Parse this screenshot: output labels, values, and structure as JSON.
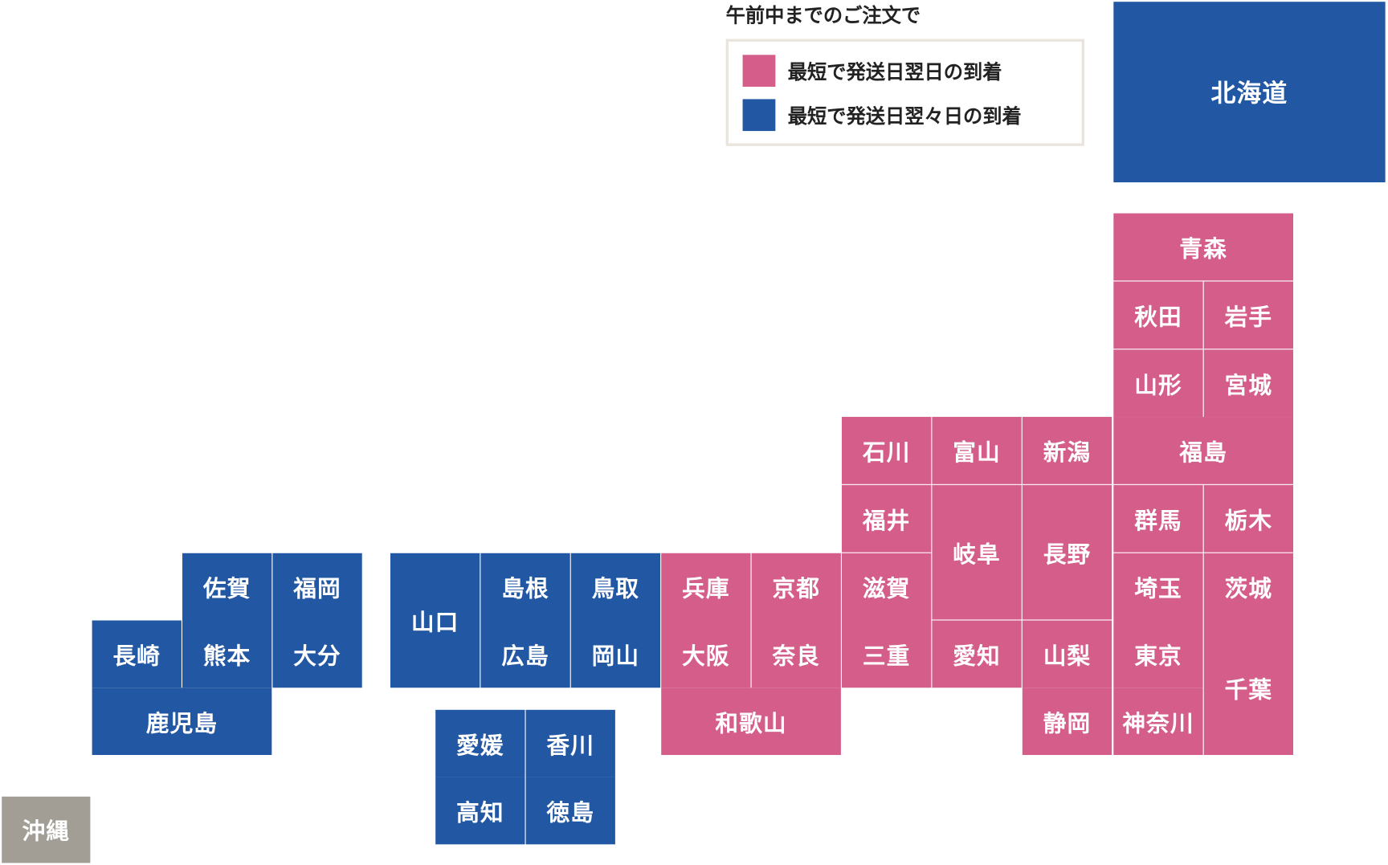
{
  "colors": {
    "next_day": "#d45d8a",
    "two_days": "#2258a3",
    "other": "#a29e96"
  },
  "legend": {
    "title": "午前中までのご注文で",
    "items": [
      {
        "label": "最短で発送日翌日の到着",
        "category": "next_day"
      },
      {
        "label": "最短で発送日翌々日の到着",
        "category": "two_days"
      }
    ]
  },
  "prefectures": [
    {
      "name": "北海道",
      "category": "two_days"
    },
    {
      "name": "青森",
      "category": "next_day"
    },
    {
      "name": "秋田",
      "category": "next_day"
    },
    {
      "name": "岩手",
      "category": "next_day"
    },
    {
      "name": "山形",
      "category": "next_day"
    },
    {
      "name": "宮城",
      "category": "next_day"
    },
    {
      "name": "石川",
      "category": "next_day"
    },
    {
      "name": "富山",
      "category": "next_day"
    },
    {
      "name": "新潟",
      "category": "next_day"
    },
    {
      "name": "福島",
      "category": "next_day"
    },
    {
      "name": "福井",
      "category": "next_day"
    },
    {
      "name": "岐阜",
      "category": "next_day"
    },
    {
      "name": "長野",
      "category": "next_day"
    },
    {
      "name": "群馬",
      "category": "next_day"
    },
    {
      "name": "栃木",
      "category": "next_day"
    },
    {
      "name": "滋賀",
      "category": "next_day"
    },
    {
      "name": "埼玉",
      "category": "next_day"
    },
    {
      "name": "茨城",
      "category": "next_day"
    },
    {
      "name": "兵庫",
      "category": "next_day"
    },
    {
      "name": "京都",
      "category": "next_day"
    },
    {
      "name": "大阪",
      "category": "next_day"
    },
    {
      "name": "奈良",
      "category": "next_day"
    },
    {
      "name": "三重",
      "category": "next_day"
    },
    {
      "name": "愛知",
      "category": "next_day"
    },
    {
      "name": "山梨",
      "category": "next_day"
    },
    {
      "name": "東京",
      "category": "next_day"
    },
    {
      "name": "千葉",
      "category": "next_day"
    },
    {
      "name": "和歌山",
      "category": "next_day"
    },
    {
      "name": "静岡",
      "category": "next_day"
    },
    {
      "name": "神奈川",
      "category": "next_day"
    },
    {
      "name": "山口",
      "category": "two_days"
    },
    {
      "name": "島根",
      "category": "two_days"
    },
    {
      "name": "鳥取",
      "category": "two_days"
    },
    {
      "name": "広島",
      "category": "two_days"
    },
    {
      "name": "岡山",
      "category": "two_days"
    },
    {
      "name": "愛媛",
      "category": "two_days"
    },
    {
      "name": "香川",
      "category": "two_days"
    },
    {
      "name": "高知",
      "category": "two_days"
    },
    {
      "name": "徳島",
      "category": "two_days"
    },
    {
      "name": "佐賀",
      "category": "two_days"
    },
    {
      "name": "福岡",
      "category": "two_days"
    },
    {
      "name": "長崎",
      "category": "two_days"
    },
    {
      "name": "熊本",
      "category": "two_days"
    },
    {
      "name": "大分",
      "category": "two_days"
    },
    {
      "name": "鹿児島",
      "category": "two_days"
    },
    {
      "name": "沖縄",
      "category": "other"
    }
  ]
}
